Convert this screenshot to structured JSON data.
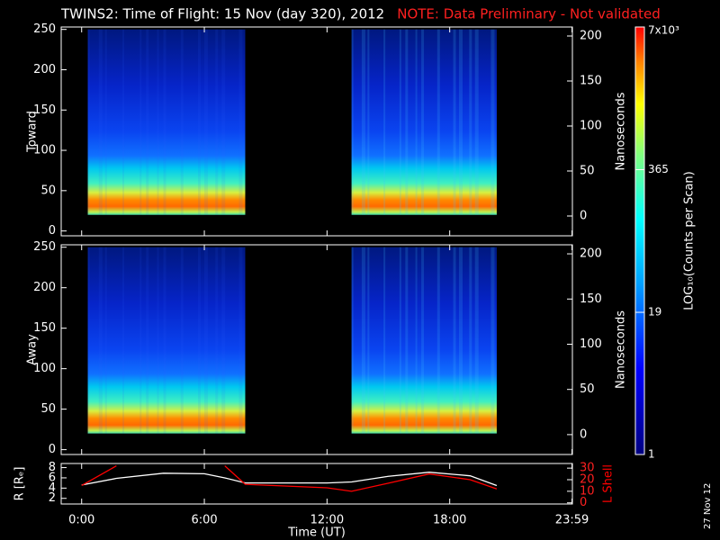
{
  "title": "TWINS2: Time of Flight: 15 Nov (day 320), 2012",
  "note": "NOTE: Data Preliminary - Not validated",
  "date_stamp": "27 Nov 12",
  "chart_data": [
    {
      "type": "spectrogram",
      "ylabel": "Toward",
      "ylim": [
        -6,
        253
      ],
      "yticks": [
        0,
        50,
        100,
        150,
        200,
        250
      ],
      "y2label": "Nanoseconds",
      "y2lim": [
        -22,
        210
      ],
      "y2ticks": [
        0,
        50,
        100,
        150,
        200
      ],
      "xlim": [
        -1,
        24
      ]
    },
    {
      "type": "spectrogram",
      "ylabel": "Away",
      "ylim": [
        -6,
        253
      ],
      "yticks": [
        0,
        50,
        100,
        150,
        200,
        250
      ],
      "y2label": "Nanoseconds",
      "y2lim": [
        -22,
        210
      ],
      "y2ticks": [
        0,
        50,
        100,
        150,
        200
      ],
      "xlim": [
        -1,
        24
      ]
    },
    {
      "type": "line",
      "xlabel": "Time (UT)",
      "xlim": [
        -1,
        24
      ],
      "xticks": [
        {
          "value": 0,
          "label": "0:00"
        },
        {
          "value": 6,
          "label": "6:00"
        },
        {
          "value": 12,
          "label": "12:00"
        },
        {
          "value": 18,
          "label": "18:00"
        },
        {
          "value": 23.98,
          "label": "23:59"
        }
      ],
      "ylim": [
        0.9,
        8.8
      ],
      "yticks": [
        2,
        4,
        6,
        8
      ],
      "y2lim": [
        -1,
        34
      ],
      "y2ticks": [
        0,
        10,
        20,
        30
      ],
      "x": [
        0,
        1.7,
        4,
        6,
        7,
        8,
        12,
        13.2,
        15,
        17,
        19,
        20.3
      ],
      "series": [
        {
          "name": "R [Rₑ]",
          "color": "#ffffff",
          "values": [
            4.6,
            5.9,
            6.9,
            6.8,
            6.0,
            5.0,
            5.0,
            5.2,
            6.3,
            7.1,
            6.4,
            4.5
          ]
        },
        {
          "name": "L Shell",
          "color": "#ff0000",
          "axis": "y2",
          "values": [
            15,
            32,
            null,
            null,
            32,
            16,
            13,
            10,
            17,
            25,
            20,
            12
          ]
        }
      ]
    },
    {
      "type": "colorbar",
      "label": "LOG₁₀(Counts per Scan)",
      "log": true,
      "ylim": [
        1,
        7000
      ],
      "yticks": [
        1,
        19,
        365,
        {
          "value": 7000,
          "label": "7x10³"
        }
      ]
    }
  ]
}
